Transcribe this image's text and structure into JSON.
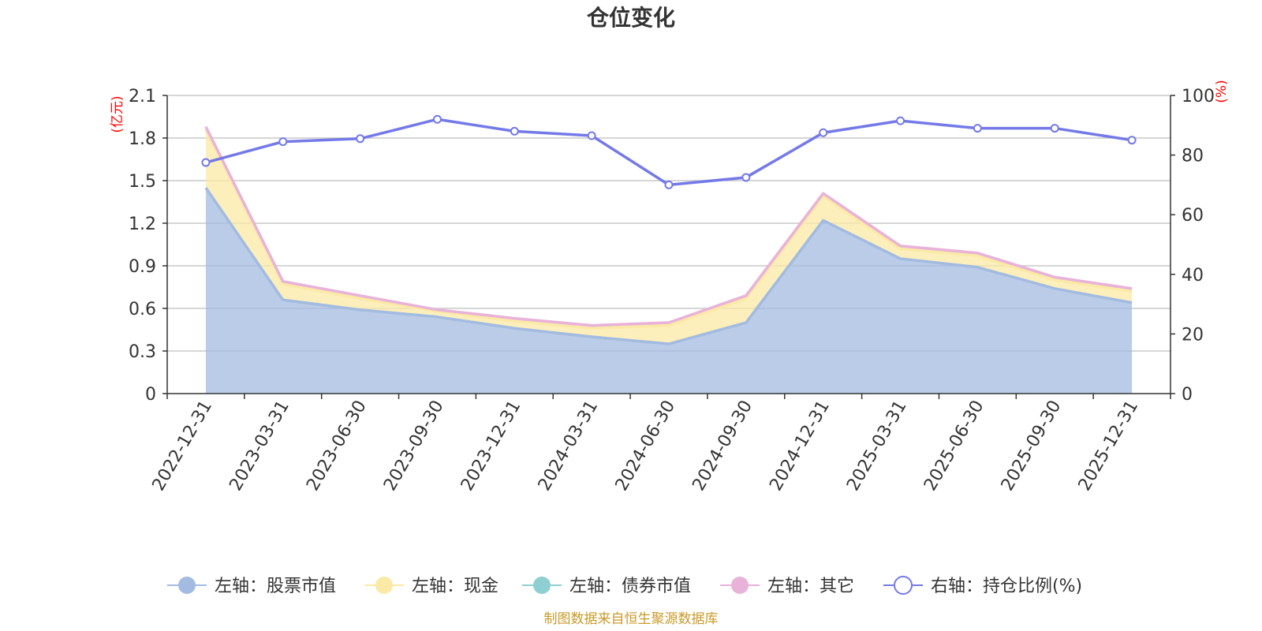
{
  "chart_data": {
    "type": "area",
    "title": "仓位变化",
    "categories": [
      "2022-12-31",
      "2023-03-31",
      "2023-06-30",
      "2023-09-30",
      "2023-12-31",
      "2024-03-31",
      "2024-06-30",
      "2024-09-30",
      "2024-12-31",
      "2025-03-31",
      "2025-06-30",
      "2025-09-30",
      "2025-12-31"
    ],
    "left_axis": {
      "unit": "(亿元)",
      "ylim": [
        0,
        2.1
      ],
      "ticks": [
        "0",
        "0.3",
        "0.6",
        "0.9",
        "1.2",
        "1.5",
        "1.8",
        "2.1"
      ]
    },
    "right_axis": {
      "unit": "(%)",
      "ylim": [
        0,
        100
      ],
      "ticks": [
        "0",
        "20",
        "40",
        "60",
        "80",
        "100"
      ]
    },
    "grid": true,
    "legend_position": "bottom",
    "series": [
      {
        "name": "左轴：股票市值",
        "axis": "left",
        "kind": "stacked-area",
        "color": "#a3bbe0",
        "values": [
          1.45,
          0.66,
          0.59,
          0.54,
          0.46,
          0.4,
          0.35,
          0.5,
          1.22,
          0.95,
          0.89,
          0.74,
          0.64
        ]
      },
      {
        "name": "左轴：现金",
        "axis": "left",
        "kind": "stacked-area",
        "color": "#fbe9a6",
        "values": [
          0.41,
          0.11,
          0.08,
          0.04,
          0.05,
          0.06,
          0.13,
          0.17,
          0.17,
          0.07,
          0.08,
          0.06,
          0.08
        ]
      },
      {
        "name": "左轴：债券市值",
        "axis": "left",
        "kind": "stacked-area",
        "color": "#8ecfd1",
        "values": [
          0,
          0,
          0,
          0,
          0,
          0,
          0,
          0,
          0,
          0,
          0,
          0,
          0
        ]
      },
      {
        "name": "左轴：其它",
        "axis": "left",
        "kind": "stacked-area",
        "color": "#e8b2d9",
        "values": [
          0.02,
          0.02,
          0.02,
          0.01,
          0.02,
          0.02,
          0.02,
          0.02,
          0.02,
          0.02,
          0.02,
          0.02,
          0.02
        ]
      },
      {
        "name": "右轴：持仓比例(%)",
        "axis": "right",
        "kind": "line",
        "color": "#7479e8",
        "values": [
          77.5,
          84.5,
          85.5,
          92,
          88,
          86.5,
          70,
          72.5,
          87.5,
          91.5,
          89,
          89,
          85
        ]
      }
    ],
    "source": "制图数据来自恒生聚源数据库"
  }
}
